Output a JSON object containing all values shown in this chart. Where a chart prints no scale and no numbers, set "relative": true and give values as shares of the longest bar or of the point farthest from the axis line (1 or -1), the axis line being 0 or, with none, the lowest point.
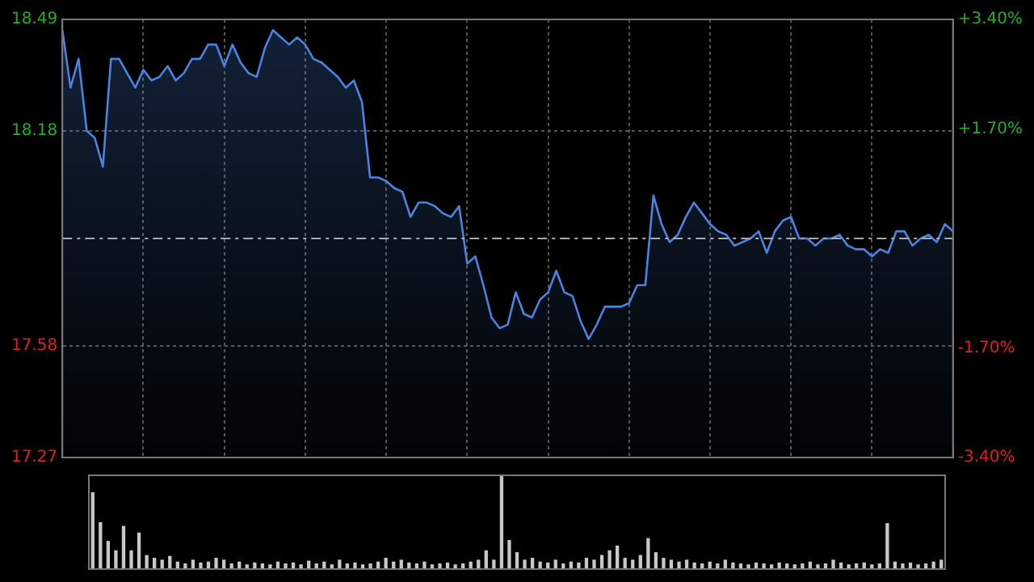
{
  "chart_data": [
    {
      "type": "area",
      "categories": [
        null,
        null,
        null,
        null,
        null,
        null,
        null,
        null,
        null,
        null,
        null,
        null,
        null,
        null,
        null,
        null,
        null,
        null,
        null,
        null,
        null,
        null,
        null,
        null,
        null,
        null,
        null,
        null,
        null,
        null,
        null,
        null,
        null,
        null,
        null,
        null,
        null,
        null,
        null,
        null,
        null,
        null,
        null,
        null,
        null,
        null,
        null,
        null,
        null,
        null,
        null,
        null,
        null,
        null,
        null,
        null,
        null,
        null,
        null,
        null,
        null,
        null,
        null,
        null,
        null,
        null,
        null,
        null,
        null,
        null,
        null,
        null,
        null,
        null,
        null,
        null,
        null,
        null,
        null,
        null,
        null,
        null,
        null,
        null,
        null,
        null,
        null,
        null,
        null,
        null,
        null,
        null,
        null,
        null,
        null,
        null,
        null,
        null,
        null,
        null,
        null,
        null,
        null,
        null,
        null,
        null,
        null,
        null,
        null,
        null,
        null
      ],
      "series": [
        {
          "color": "#4a84e0",
          "values": [
            18.46,
            18.3,
            18.38,
            18.18,
            18.16,
            18.08,
            18.38,
            18.38,
            18.34,
            18.3,
            18.35,
            18.32,
            18.33,
            18.36,
            18.32,
            18.34,
            18.38,
            18.38,
            18.42,
            18.42,
            18.36,
            18.42,
            18.37,
            18.34,
            18.33,
            18.41,
            18.46,
            18.44,
            18.42,
            18.44,
            18.42,
            18.38,
            18.37,
            18.35,
            18.33,
            18.3,
            18.32,
            18.26,
            18.05,
            18.05,
            18.04,
            18.02,
            18.01,
            17.94,
            17.98,
            17.98,
            17.97,
            17.95,
            17.94,
            17.97,
            17.81,
            17.83,
            17.75,
            17.66,
            17.63,
            17.64,
            17.73,
            17.67,
            17.66,
            17.71,
            17.73,
            17.79,
            17.73,
            17.72,
            17.65,
            17.6,
            17.64,
            17.69,
            17.69,
            17.69,
            17.7,
            17.75,
            17.75,
            18.0,
            17.92,
            17.87,
            17.89,
            17.94,
            17.98,
            17.95,
            17.92,
            17.9,
            17.89,
            17.86,
            17.87,
            17.88,
            17.9,
            17.84,
            17.9,
            17.93,
            17.94,
            17.88,
            17.88,
            17.86,
            17.88,
            17.88,
            17.89,
            17.86,
            17.85,
            17.85,
            17.83,
            17.85,
            17.84,
            17.9,
            17.9,
            17.86,
            17.88,
            17.89,
            17.87,
            17.92,
            17.9
          ]
        }
      ],
      "ylim": [
        17.27,
        18.49
      ],
      "yticks": [
        18.49,
        18.18,
        17.58,
        17.27
      ],
      "y2lim": [
        -3.4,
        3.4
      ],
      "y2ticks": [
        {
          "value": 3.4,
          "label": "+3.40%"
        },
        {
          "value": 1.7,
          "label": "+1.70%"
        },
        {
          "value": -1.7,
          "label": "-1.70%"
        },
        {
          "value": -3.4,
          "label": "-3.40%"
        }
      ],
      "ref_lines": [
        {
          "axis": "y",
          "value": 17.88,
          "line_style": "dashed"
        }
      ],
      "grid": true,
      "tick_labels": "y",
      "marker": "none"
    },
    {
      "type": "bar",
      "categories": [
        null,
        null,
        null,
        null,
        null,
        null,
        null,
        null,
        null,
        null,
        null,
        null,
        null,
        null,
        null,
        null,
        null,
        null,
        null,
        null,
        null,
        null,
        null,
        null,
        null,
        null,
        null,
        null,
        null,
        null,
        null,
        null,
        null,
        null,
        null,
        null,
        null,
        null,
        null,
        null,
        null,
        null,
        null,
        null,
        null,
        null,
        null,
        null,
        null,
        null,
        null,
        null,
        null,
        null,
        null,
        null,
        null,
        null,
        null,
        null,
        null,
        null,
        null,
        null,
        null,
        null,
        null,
        null,
        null,
        null,
        null,
        null,
        null,
        null,
        null,
        null,
        null,
        null,
        null,
        null,
        null,
        null,
        null,
        null,
        null,
        null,
        null,
        null,
        null,
        null,
        null,
        null,
        null,
        null,
        null,
        null,
        null,
        null,
        null,
        null,
        null,
        null,
        null,
        null,
        null,
        null,
        null,
        null,
        null,
        null,
        null
      ],
      "color": "#c8c8c8",
      "relative": true,
      "tick_labels": false,
      "values": [
        0.82,
        0.5,
        0.3,
        0.2,
        0.46,
        0.2,
        0.39,
        0.15,
        0.12,
        0.1,
        0.14,
        0.08,
        0.06,
        0.1,
        0.07,
        0.08,
        0.12,
        0.1,
        0.06,
        0.08,
        0.05,
        0.07,
        0.06,
        0.05,
        0.08,
        0.06,
        0.07,
        0.05,
        0.09,
        0.06,
        0.08,
        0.05,
        0.1,
        0.06,
        0.07,
        0.05,
        0.06,
        0.08,
        0.12,
        0.08,
        0.1,
        0.07,
        0.06,
        0.08,
        0.05,
        0.06,
        0.07,
        0.05,
        0.06,
        0.08,
        0.1,
        0.2,
        0.1,
        1,
        0.31,
        0.18,
        0.1,
        0.12,
        0.08,
        0.07,
        0.1,
        0.06,
        0.08,
        0.07,
        0.12,
        0.1,
        0.15,
        0.2,
        0.25,
        0.12,
        0.1,
        0.15,
        0.33,
        0.18,
        0.12,
        0.1,
        0.08,
        0.1,
        0.07,
        0.06,
        0.08,
        0.06,
        0.1,
        0.07,
        0.06,
        0.05,
        0.07,
        0.06,
        0.05,
        0.07,
        0.06,
        0.05,
        0.06,
        0.08,
        0.05,
        0.06,
        0.1,
        0.07,
        0.05,
        0.06,
        0.07,
        0.05,
        0.06,
        0.49,
        0.08,
        0.06,
        0.07,
        0.05,
        0.06,
        0.08,
        0.1
      ]
    }
  ]
}
